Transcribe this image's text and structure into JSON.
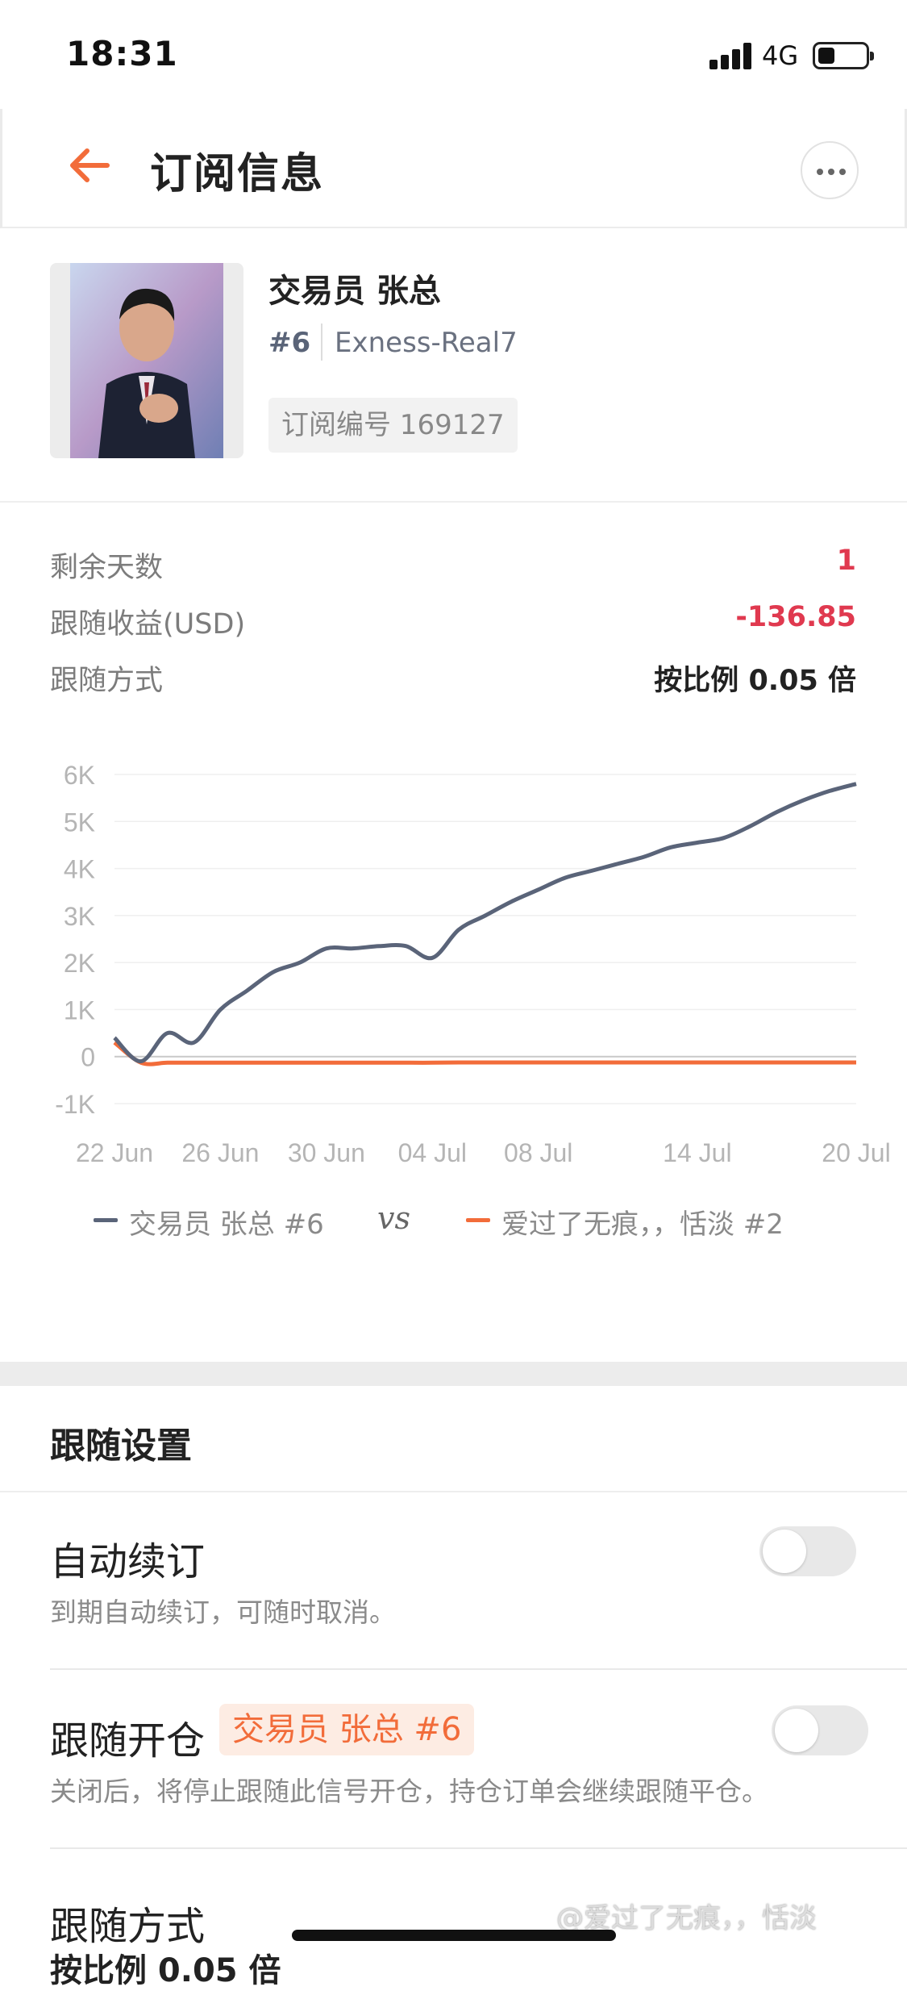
{
  "status_bar": {
    "time": "18:31",
    "network": "4G"
  },
  "header": {
    "title": "订阅信息"
  },
  "profile": {
    "trader_name": "交易员 张总",
    "rank": "#6",
    "account": "Exness-Real7",
    "subscription_id": "订阅编号 169127"
  },
  "stats": [
    {
      "label": "剩余天数",
      "value": "1"
    },
    {
      "label": "跟随收益(USD)",
      "value": "-136.85"
    },
    {
      "label": "跟随方式",
      "value": "按比例 0.05 倍"
    }
  ],
  "colors": {
    "accent": "#f26c3a",
    "negative": "#e0394f",
    "trader_series": "#5a6479",
    "follower_series": "#f26c3a"
  },
  "chart_data": {
    "type": "line",
    "x": [
      "22 Jun",
      "23 Jun",
      "24 Jun",
      "25 Jun",
      "26 Jun",
      "27 Jun",
      "28 Jun",
      "29 Jun",
      "30 Jun",
      "01 Jul",
      "02 Jul",
      "03 Jul",
      "04 Jul",
      "05 Jul",
      "06 Jul",
      "07 Jul",
      "08 Jul",
      "09 Jul",
      "10 Jul",
      "11 Jul",
      "12 Jul",
      "13 Jul",
      "14 Jul",
      "15 Jul",
      "16 Jul",
      "17 Jul",
      "18 Jul",
      "19 Jul",
      "20 Jul"
    ],
    "x_ticks": [
      "22 Jun",
      "26 Jun",
      "30 Jun",
      "04 Jul",
      "08 Jul",
      "14 Jul",
      "20 Jul"
    ],
    "y_ticks": [
      "6K",
      "5K",
      "4K",
      "3K",
      "2K",
      "1K",
      "0",
      "-1K"
    ],
    "ylim": [
      -1000,
      6000
    ],
    "series": [
      {
        "name": "交易员 张总 #6",
        "values": [
          400,
          -100,
          500,
          300,
          1000,
          1400,
          1800,
          2000,
          2300,
          2300,
          2350,
          2350,
          2100,
          2700,
          3000,
          3300,
          3550,
          3800,
          3950,
          4100,
          4250,
          4450,
          4550,
          4650,
          4900,
          5200,
          5450,
          5650,
          5800
        ]
      },
      {
        "name": "爱过了无痕，，恬淡 #2",
        "values": [
          300,
          -130,
          -130,
          -130,
          -130,
          -130,
          -130,
          -130,
          -130,
          -130,
          -130,
          -130,
          -130,
          -125,
          -125,
          -125,
          -125,
          -125,
          -125,
          -125,
          -125,
          -125,
          -125,
          -125,
          -125,
          -125,
          -125,
          -125,
          -125
        ]
      }
    ],
    "legend_separator": "vs",
    "grid": true
  },
  "settings": {
    "title": "跟随设置",
    "auto_renew": {
      "title": "自动续订",
      "desc": "到期自动续订，可随时取消。",
      "enabled": false
    },
    "follow_open": {
      "title": "跟随开仓",
      "tag": "交易员 张总 #6",
      "desc": "关闭后，将停止跟随此信号开仓，持仓订单会继续跟随平仓。",
      "enabled": false
    },
    "follow_mode": {
      "title": "跟随方式",
      "value": "按比例 0.05 倍"
    }
  },
  "watermark": "@爱过了无痕，，恬淡"
}
